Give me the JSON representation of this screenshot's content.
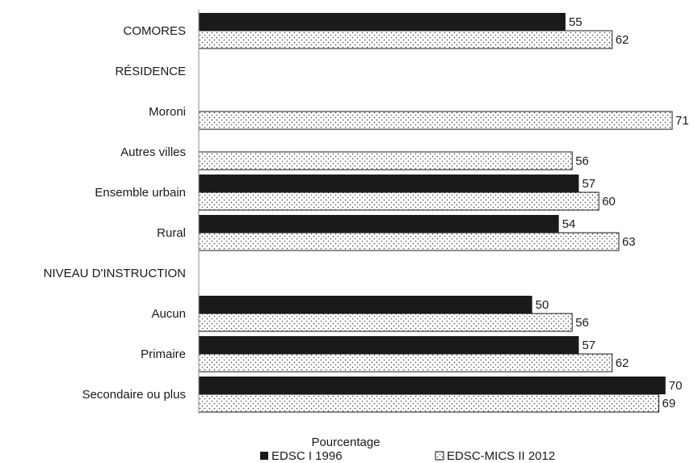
{
  "chart_data": {
    "type": "bar",
    "orientation": "horizontal",
    "categories": [
      "COMORES",
      "RÉSIDENCE",
      "Moroni",
      "Autres villes",
      "Ensemble urbain",
      "Rural",
      "NIVEAU D'INSTRUCTION",
      "Aucun",
      "Primaire",
      "Secondaire ou plus"
    ],
    "series": [
      {
        "name": "EDSC I 1996",
        "values": [
          55,
          null,
          null,
          null,
          57,
          54,
          null,
          50,
          57,
          70
        ],
        "color": "#1a1a1a",
        "pattern": "solid"
      },
      {
        "name": "EDSC-MICS II 2012",
        "values": [
          62,
          null,
          71,
          56,
          60,
          63,
          null,
          56,
          62,
          69
        ],
        "color": "#ffffff",
        "pattern": "dotted"
      }
    ],
    "title": "",
    "xlabel": "Pourcentage",
    "ylabel": "",
    "xlim": [
      0,
      71
    ],
    "grid": false,
    "legend_position": "bottom"
  }
}
